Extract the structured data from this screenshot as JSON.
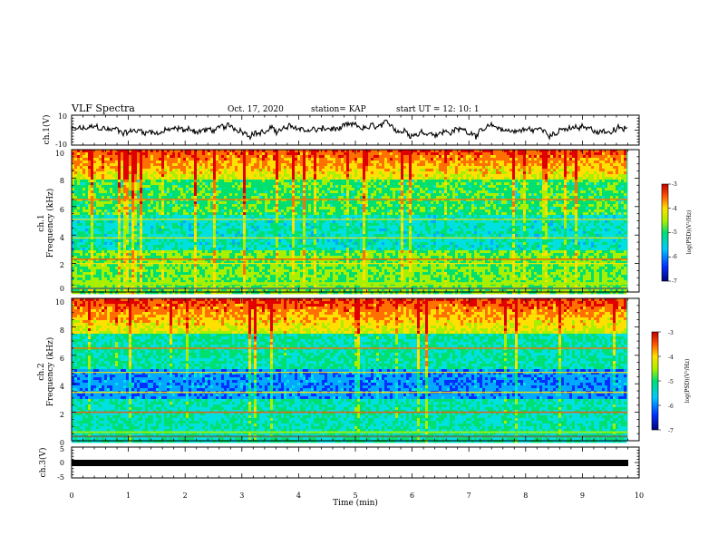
{
  "header": {
    "title": "VLF Spectra",
    "date": "Oct. 17, 2020",
    "station": "station= KAP",
    "start": "start  UT =   12: 10: 1"
  },
  "chart_data": [
    {
      "id": "ch1_waveform",
      "type": "line",
      "ylabel": "ch.1(V)",
      "ylim": [
        -10,
        10
      ],
      "yticks": [
        "10",
        "-10"
      ],
      "xlim": [
        0,
        10
      ],
      "description_values": "noisy waveform fluctuating mostly between about -6 V and +6 V over 0 to 9.8 min"
    },
    {
      "id": "ch1_spectrogram",
      "type": "heatmap",
      "ylabel_top": "ch.1",
      "ylabel": "Frequency (kHz)",
      "ylim": [
        0,
        10
      ],
      "yticks": [
        "0",
        "2",
        "4",
        "6",
        "8",
        "10"
      ],
      "xlim": [
        0,
        10
      ],
      "data_extent_min": [
        0,
        9.8
      ],
      "colorbar": {
        "label": "log(PSD)(V²/Hz)",
        "min": -7,
        "max": -3,
        "ticks": [
          "-3",
          "-4",
          "-5",
          "-6",
          "-7"
        ]
      },
      "colors": [
        "#00008b",
        "#0050ff",
        "#00c8ff",
        "#00e070",
        "#b8f000",
        "#ffe000",
        "#ff6000",
        "#d00000"
      ]
    },
    {
      "id": "ch2_spectrogram",
      "type": "heatmap",
      "ylabel_top": "ch.2",
      "ylabel": "Frequency (kHz)",
      "ylim": [
        0,
        10
      ],
      "yticks": [
        "0",
        "2",
        "4",
        "6",
        "8",
        "10"
      ],
      "xlim": [
        0,
        10
      ],
      "data_extent_min": [
        0,
        9.8
      ],
      "colorbar": {
        "label": "log(PSD)(V²/Hz)",
        "min": -7,
        "max": -3,
        "ticks": [
          "-3",
          "-4",
          "-5",
          "-6",
          "-7"
        ]
      }
    },
    {
      "id": "ch3_waveform",
      "type": "line",
      "ylabel": "ch.3(V)",
      "ylim": [
        -5,
        5
      ],
      "yticks": [
        "5",
        "0",
        "-5"
      ],
      "xlim": [
        0,
        10
      ],
      "xlabel": "Time  (min)",
      "xticks": [
        "0",
        "1",
        "2",
        "3",
        "4",
        "5",
        "6",
        "7",
        "8",
        "9",
        "10"
      ],
      "constant_value": 0
    }
  ]
}
